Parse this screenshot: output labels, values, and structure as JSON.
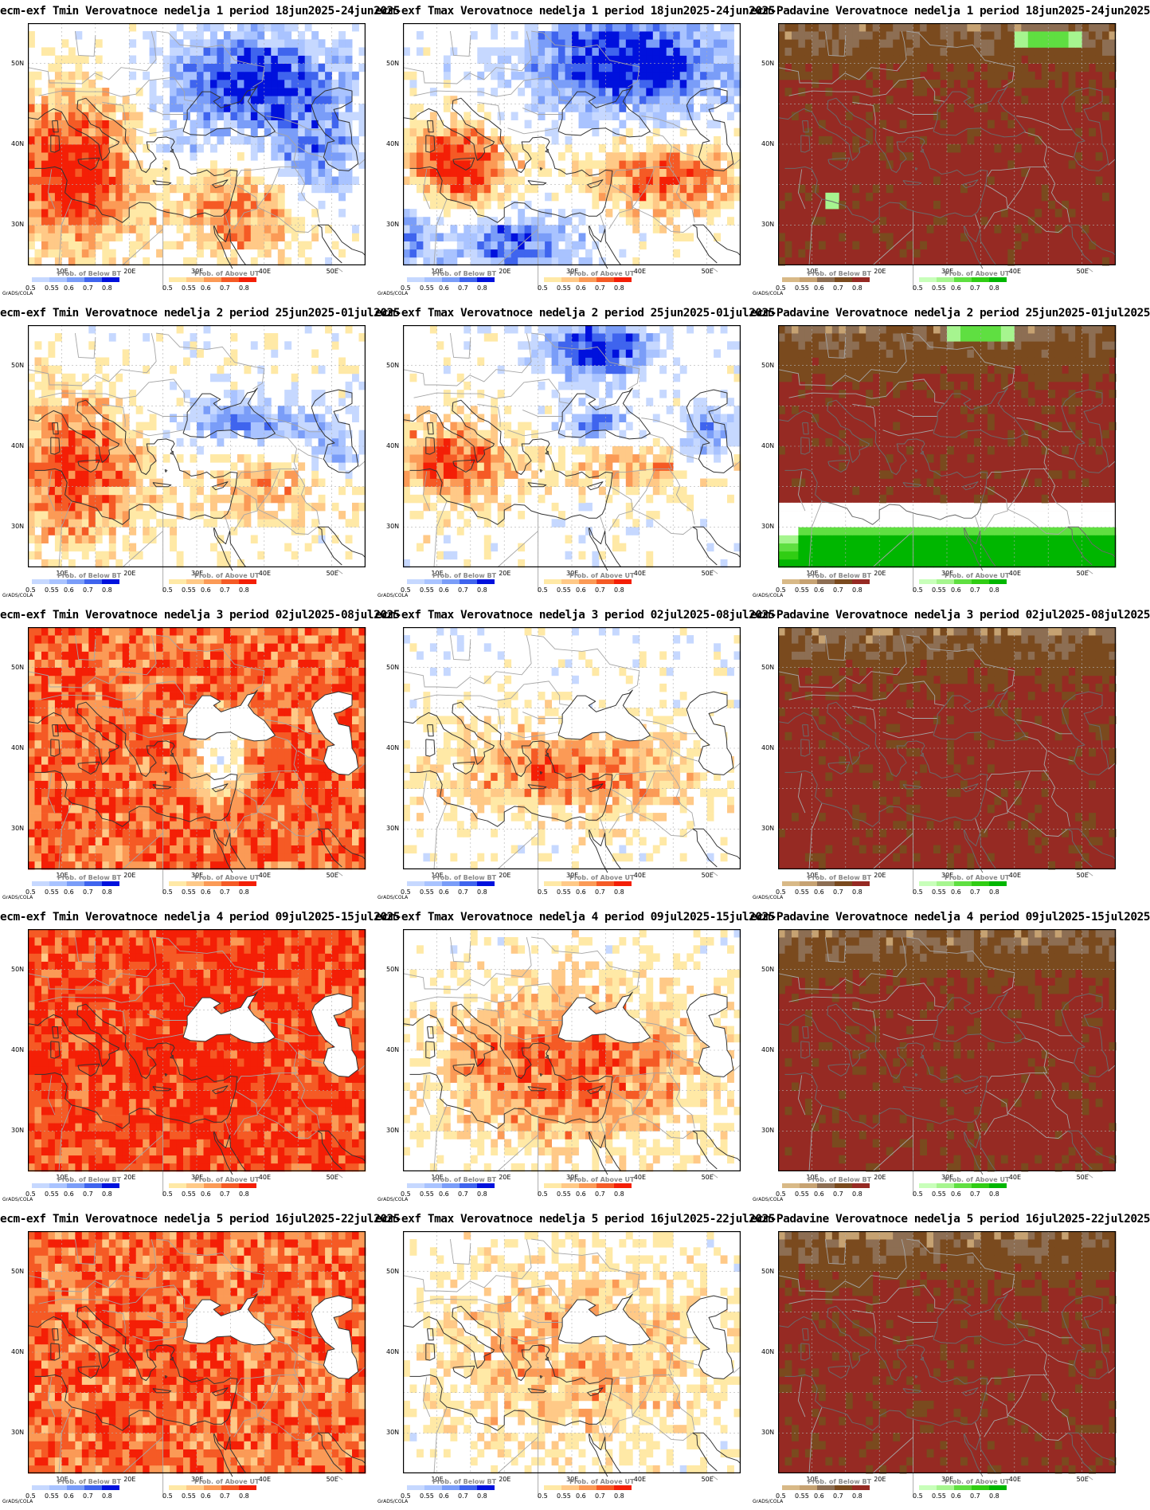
{
  "map_extent": {
    "lon": [
      5,
      55
    ],
    "lat": [
      25,
      55
    ],
    "grid_step": 5
  },
  "lat_ticks": [
    "50N",
    "40N",
    "30N"
  ],
  "lon_ticks": [
    "10E",
    "20E",
    "30E",
    "40E",
    "50E"
  ],
  "credit": "GrADS/COLA",
  "legends": {
    "below": {
      "title": "Prob. of Below BT",
      "colors": [
        "#c6d8ff",
        "#a9c3ff",
        "#7a9df8",
        "#3f64ee",
        "#0011dd"
      ],
      "ticks": [
        "0.5",
        "0.55",
        "0.6",
        "0.7",
        "0.8"
      ]
    },
    "above": {
      "title": "Prob. of Above UT",
      "colors": [
        "#ffe9a6",
        "#ffc987",
        "#fb9a56",
        "#f55a25",
        "#f41f06"
      ],
      "ticks": [
        "0.5",
        "0.55",
        "0.6",
        "0.7",
        "0.8"
      ]
    },
    "dry": {
      "title": "Prob. of Below BT",
      "colors": [
        "#d8b987",
        "#c6a272",
        "#8d6e53",
        "#7a4a1e",
        "#962a23"
      ],
      "ticks": [
        "0.5",
        "0.55",
        "0.6",
        "0.7",
        "0.8"
      ]
    },
    "wet": {
      "title": "Prob. of Above UT",
      "colors": [
        "#c8ffba",
        "#a6f58f",
        "#5fdf41",
        "#30cd13",
        "#00b600"
      ],
      "ticks": [
        "0.5",
        "0.55",
        "0.6",
        "0.7",
        "0.8"
      ]
    }
  },
  "panels": [
    {
      "title": "ecm-exf Tmin Verovatnoce nedelja 1 period 18jun2025-24jun2025",
      "var": "tmin",
      "week": 1
    },
    {
      "title": "ecm-exf Tmax Verovatnoce nedelja 1 period 18jun2025-24jun2025",
      "var": "tmax",
      "week": 1
    },
    {
      "title": "ecm-Padavine Verovatnoce nedelja 1 period 18jun2025-24jun2025",
      "var": "prec",
      "week": 1
    },
    {
      "title": "ecm-exf Tmin Verovatnoce nedelja 2 period 25jun2025-01jul2025",
      "var": "tmin",
      "week": 2
    },
    {
      "title": "ecm-exf Tmax Verovatnoce nedelja 2 period 25jun2025-01jul2025",
      "var": "tmax",
      "week": 2
    },
    {
      "title": "ecm-Padavine Verovatnoce nedelja 2 period 25jun2025-01jul2025",
      "var": "prec",
      "week": 2
    },
    {
      "title": "ecm-exf Tmin Verovatnoce nedelja 3 period 02jul2025-08jul2025",
      "var": "tmin",
      "week": 3
    },
    {
      "title": "ecm-exf Tmax Verovatnoce nedelja 3 period 02jul2025-08jul2025",
      "var": "tmax",
      "week": 3
    },
    {
      "title": "ecm-Padavine Verovatnoce nedelja 3 period 02jul2025-08jul2025",
      "var": "prec",
      "week": 3
    },
    {
      "title": "ecm-exf Tmin Verovatnoce nedelja 4 period 09jul2025-15jul2025",
      "var": "tmin",
      "week": 4
    },
    {
      "title": "ecm-exf Tmax Verovatnoce nedelja 4 period 09jul2025-15jul2025",
      "var": "tmax",
      "week": 4
    },
    {
      "title": "ecm-Padavine Verovatnoce nedelja 4 period 09jul2025-15jul2025",
      "var": "prec",
      "week": 4
    },
    {
      "title": "ecm-exf Tmin Verovatnoce nedelja 5 period 16jul2025-22jul2025",
      "var": "tmin",
      "week": 5
    },
    {
      "title": "ecm-exf Tmax Verovatnoce nedelja 5 period 16jul2025-22jul2025",
      "var": "tmax",
      "week": 5
    },
    {
      "title": "ecm-Padavine Verovatnoce nedelja 5 period 16jul2025-22jul2025",
      "var": "prec",
      "week": 5
    }
  ]
}
